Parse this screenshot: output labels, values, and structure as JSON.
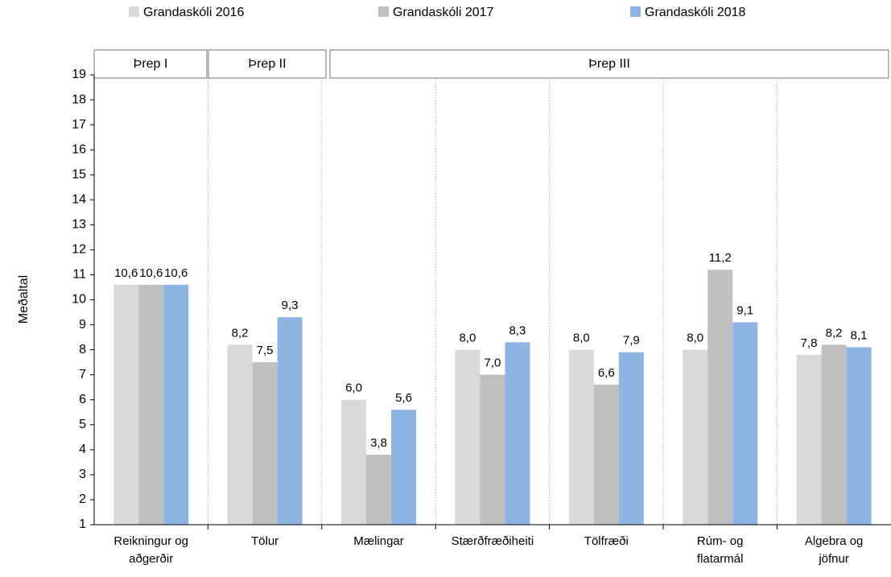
{
  "chart_data": {
    "type": "bar",
    "y_label": "Meðaltal",
    "groups": [
      {
        "label": "Þrep I"
      },
      {
        "label": "Þrep II"
      },
      {
        "label": "Þrep III"
      }
    ],
    "categories": [
      "Reikningur og aðgerðir",
      "Tölur",
      "Mælingar",
      "Stærðfræðiheiti",
      "Tölfræði",
      "Rúm- og flatarmál",
      "Algebra og jöfnur"
    ],
    "series": [
      {
        "name": "Grandaskóli 2016",
        "color": "#d9d9d9",
        "values": [
          10.6,
          8.2,
          6.0,
          8.0,
          8.0,
          8.0,
          7.8
        ],
        "value_labels": [
          "10,6",
          "8,2",
          "6,0",
          "8,0",
          "8,0",
          "8,0",
          "7,8"
        ]
      },
      {
        "name": "Grandaskóli 2017",
        "color": "#bfbfbf",
        "values": [
          10.6,
          7.5,
          3.8,
          7.0,
          6.6,
          11.2,
          8.2
        ],
        "value_labels": [
          "10,6",
          "7,5",
          "3,8",
          "7,0",
          "6,6",
          "11,2",
          "8,2"
        ]
      },
      {
        "name": "Grandaskóli 2018",
        "color": "#8eb4e3",
        "values": [
          10.6,
          9.3,
          5.6,
          8.3,
          7.9,
          9.1,
          8.1
        ],
        "value_labels": [
          "10,6",
          "9,3",
          "5,6",
          "8,3",
          "7,9",
          "9,1",
          "8,1"
        ]
      }
    ],
    "ylim": [
      1,
      19
    ],
    "yticks": [
      1,
      2,
      3,
      4,
      5,
      6,
      7,
      8,
      9,
      10,
      11,
      12,
      13,
      14,
      15,
      16,
      17,
      18,
      19
    ],
    "grid": false,
    "legend": "top"
  }
}
